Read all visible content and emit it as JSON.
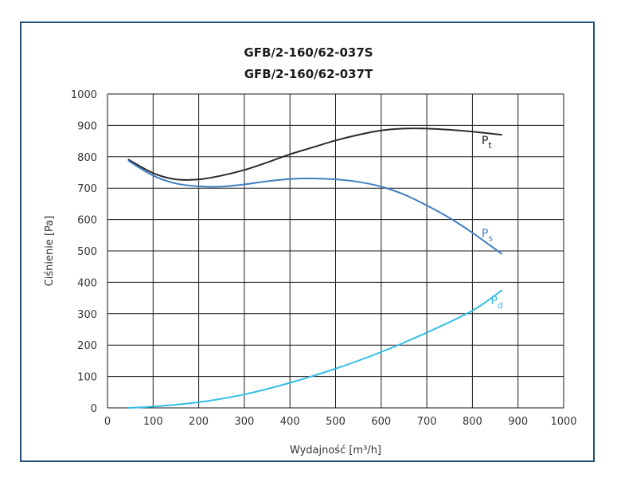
{
  "chart_data": {
    "type": "line",
    "title": "GFB/2-160/62-037S",
    "subtitle": "GFB/2-160/62-037T",
    "xlabel": "Wydajność [m³/h]",
    "ylabel": "Ciśnienie [Pa]",
    "xlim": [
      0,
      1000
    ],
    "ylim": [
      0,
      1000
    ],
    "xticks": [
      "0",
      "100",
      "200",
      "300",
      "400",
      "500",
      "600",
      "700",
      "800",
      "900",
      "1000"
    ],
    "yticks": [
      "0",
      "100",
      "200",
      "300",
      "400",
      "500",
      "600",
      "700",
      "800",
      "900",
      "1000"
    ],
    "grid": true,
    "series": [
      {
        "name": "Pt",
        "label_main": "P",
        "label_sub": "t",
        "color": "#2b2b2b",
        "x": [
          45,
          100,
          150,
          200,
          250,
          300,
          350,
          400,
          450,
          500,
          550,
          600,
          650,
          700,
          750,
          800,
          865
        ],
        "y": [
          792,
          748,
          728,
          728,
          740,
          758,
          782,
          808,
          830,
          852,
          870,
          884,
          890,
          890,
          886,
          880,
          870
        ]
      },
      {
        "name": "Ps",
        "label_main": "P",
        "label_sub": "s",
        "color": "#3f7fc1",
        "x": [
          45,
          100,
          150,
          200,
          250,
          300,
          350,
          400,
          450,
          500,
          550,
          600,
          650,
          700,
          750,
          800,
          865
        ],
        "y": [
          788,
          740,
          715,
          706,
          705,
          712,
          722,
          729,
          731,
          728,
          720,
          705,
          680,
          645,
          605,
          558,
          490
        ]
      },
      {
        "name": "Pd",
        "label_main": "P",
        "label_sub": "d",
        "color": "#33bde8",
        "x": [
          45,
          100,
          200,
          300,
          400,
          500,
          600,
          700,
          800,
          865
        ],
        "y": [
          0,
          4,
          18,
          43,
          80,
          125,
          178,
          240,
          310,
          375
        ]
      }
    ],
    "label_positions": {
      "Pt": [
        820,
        840
      ],
      "Ps": [
        820,
        545
      ],
      "Pd": [
        840,
        330
      ]
    }
  }
}
